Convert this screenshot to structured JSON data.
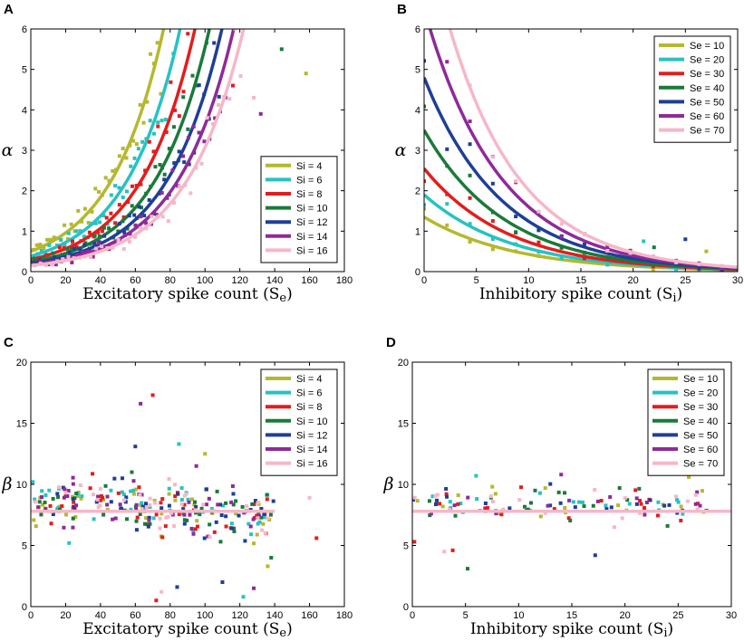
{
  "palette": [
    "#b5b82e",
    "#27c2c2",
    "#e31d1d",
    "#1a7a3a",
    "#1f3f96",
    "#8f2a9a",
    "#f6b7c8"
  ],
  "chart_data": [
    {
      "panel": "A",
      "type": "scatter",
      "xlabel": "Excitatory spike count",
      "xlabel_symbol": "S",
      "xlabel_sub": "e",
      "ylabel": "α",
      "xlim": [
        0,
        180
      ],
      "ylim": [
        0,
        6
      ],
      "xticks": [
        0,
        20,
        40,
        60,
        80,
        100,
        120,
        140,
        160,
        180
      ],
      "yticks": [
        0,
        1,
        2,
        3,
        4,
        5,
        6
      ],
      "legend_position": "lower-right",
      "legend": [
        "Si = 4",
        "Si = 6",
        "Si = 8",
        "Si = 10",
        "Si = 12",
        "Si = 14",
        "Si = 16"
      ],
      "fit": {
        "form": "exponential",
        "a": [
          0.5,
          0.38,
          0.3,
          0.24,
          0.2,
          0.17,
          0.15
        ],
        "b": [
          0.0326,
          0.0322,
          0.0318,
          0.0314,
          0.031,
          0.0306,
          0.0302
        ]
      },
      "scatter_points": 38,
      "point_jitter": 0.12,
      "extra_points": [
        [
          158,
          4.9
        ],
        [
          144,
          5.5
        ],
        [
          128,
          4.3
        ],
        [
          116,
          4.6
        ],
        [
          132,
          3.9
        ]
      ]
    },
    {
      "panel": "B",
      "type": "scatter",
      "xlabel": "Inhibitory spike count",
      "xlabel_symbol": "S",
      "xlabel_sub": "i",
      "ylabel": "α",
      "xlim": [
        0,
        30
      ],
      "ylim": [
        0,
        6
      ],
      "xticks": [
        0,
        5,
        10,
        15,
        20,
        25,
        30
      ],
      "yticks": [
        0,
        1,
        2,
        3,
        4,
        5,
        6
      ],
      "legend_position": "top-right",
      "legend": [
        "Se = 10",
        "Se = 20",
        "Se = 30",
        "Se = 40",
        "Se = 50",
        "Se = 60",
        "Se = 70"
      ],
      "fit": {
        "form": "exponential-decay",
        "a": [
          1.35,
          1.9,
          2.55,
          3.5,
          4.8,
          6.5,
          8.6
        ],
        "b": [
          0.115,
          0.12,
          0.125,
          0.13,
          0.135,
          0.14,
          0.145
        ]
      },
      "scatter_points": 14,
      "point_jitter": 0.1,
      "extra_points": [
        [
          21,
          0.75
        ],
        [
          25,
          0.8
        ],
        [
          27,
          0.5
        ],
        [
          22,
          0.6
        ]
      ]
    },
    {
      "panel": "C",
      "type": "scatter",
      "xlabel": "Excitatory spike count",
      "xlabel_symbol": "S",
      "xlabel_sub": "e",
      "ylabel": "β",
      "xlim": [
        0,
        180
      ],
      "ylim": [
        0,
        20
      ],
      "xticks": [
        0,
        20,
        40,
        60,
        80,
        100,
        120,
        140,
        160,
        180
      ],
      "yticks": [
        0,
        5,
        10,
        15,
        20
      ],
      "legend_position": "top-right",
      "legend": [
        "Si = 4",
        "Si = 6",
        "Si = 8",
        "Si = 10",
        "Si = 12",
        "Si = 14",
        "Si = 16"
      ],
      "hline": {
        "y": 7.8,
        "x_range": [
          0,
          140
        ]
      },
      "cloud": {
        "x_range": [
          0,
          140
        ],
        "center": 8.6,
        "spread": 1.4,
        "points_per_series": 40
      },
      "extra_points": [
        [
          70,
          17.3
        ],
        [
          63,
          16.6
        ],
        [
          85,
          13.3
        ],
        [
          60,
          13.1
        ],
        [
          100,
          12.5
        ],
        [
          58,
          11.0
        ],
        [
          75,
          1.2
        ],
        [
          72,
          0.5
        ],
        [
          128,
          1.5
        ],
        [
          122,
          0.8
        ],
        [
          110,
          2.0
        ],
        [
          136,
          3.3
        ],
        [
          138,
          4.0
        ],
        [
          160,
          8.9
        ],
        [
          164,
          5.6
        ],
        [
          95,
          11.5
        ],
        [
          22,
          5.2
        ],
        [
          84,
          1.6
        ]
      ]
    },
    {
      "panel": "D",
      "type": "scatter",
      "xlabel": "Inhibitory spike count",
      "xlabel_symbol": "S",
      "xlabel_sub": "i",
      "ylabel": "β",
      "xlim": [
        0,
        30
      ],
      "ylim": [
        0,
        20
      ],
      "xticks": [
        0,
        5,
        10,
        15,
        20,
        25,
        30
      ],
      "yticks": [
        0,
        5,
        10,
        15,
        20
      ],
      "legend_position": "top-right",
      "legend": [
        "Se = 10",
        "Se = 20",
        "Se = 30",
        "Se = 40",
        "Se = 50",
        "Se = 60",
        "Se = 70"
      ],
      "hline": {
        "y": 7.8,
        "x_range": [
          0,
          30
        ]
      },
      "cloud": {
        "x_range": [
          0,
          28
        ],
        "center": 8.4,
        "spread": 0.9,
        "points_per_series": 18
      },
      "extra_points": [
        [
          5.2,
          3.1
        ],
        [
          3.0,
          4.5
        ],
        [
          3.8,
          4.6
        ],
        [
          14.0,
          10.8
        ],
        [
          6.0,
          10.7
        ],
        [
          17.2,
          4.2
        ],
        [
          26.0,
          10.6
        ],
        [
          24.0,
          6.6
        ],
        [
          19.0,
          6.5
        ],
        [
          0.2,
          5.3
        ]
      ]
    }
  ]
}
